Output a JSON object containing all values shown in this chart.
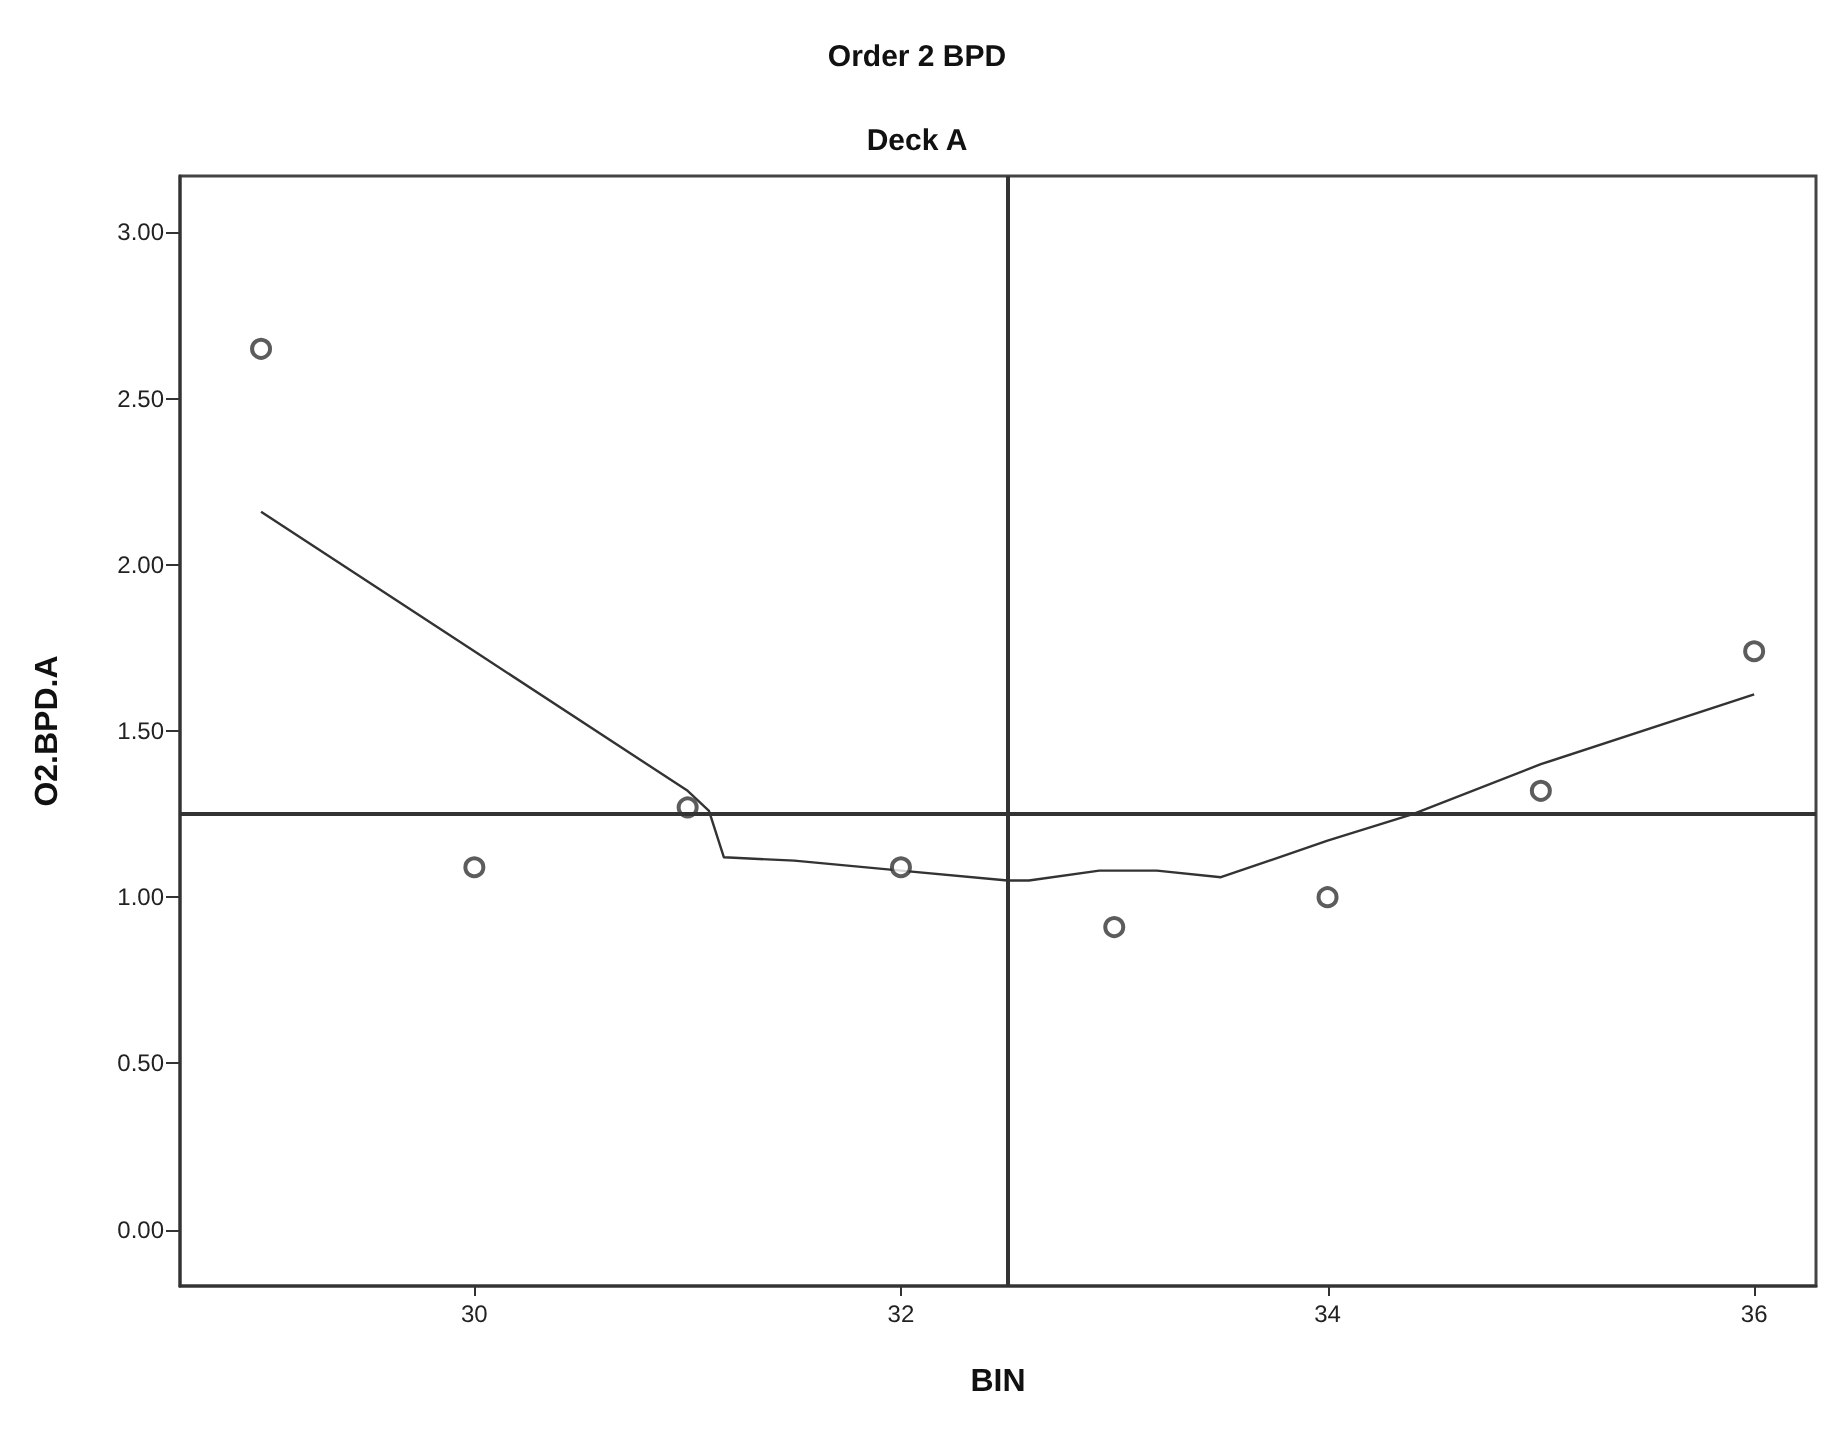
{
  "chart_data": {
    "type": "scatter",
    "title": "Order 2 BPD",
    "subtitle": "Deck A",
    "xlabel": "BIN",
    "ylabel": "O2.BPD.A",
    "xlim": [
      28.62,
      36.29
    ],
    "xticks": [
      30,
      32,
      34,
      36
    ],
    "ylim": [
      -0.17,
      3.17
    ],
    "yticks": [
      {
        "value": 0,
        "label": "0.00"
      },
      {
        "value": 0.5,
        "label": "0.50"
      },
      {
        "value": 1,
        "label": "1.00"
      },
      {
        "value": 1.5,
        "label": "1.50"
      },
      {
        "value": 2,
        "label": "2.00"
      },
      {
        "value": 2.5,
        "label": "2.50"
      },
      {
        "value": 3,
        "label": "3.00"
      }
    ],
    "grid": false,
    "marker": "circle",
    "series": [
      {
        "type": "scatter",
        "color": "#333333",
        "x": [
          29,
          30,
          31,
          32,
          33,
          34,
          35,
          36
        ],
        "values": [
          2.65,
          1.09,
          1.27,
          1.09,
          0.91,
          1.0,
          1.32,
          1.74
        ]
      },
      {
        "type": "line",
        "color": "#333333",
        "line_style": "solid",
        "marker": "none",
        "x": [
          29,
          30,
          31,
          31.1,
          31.17,
          31.5,
          32,
          32.5,
          32.6,
          32.93,
          33.2,
          33.5,
          34,
          34.4,
          35,
          36
        ],
        "values": [
          2.16,
          1.74,
          1.32,
          1.26,
          1.12,
          1.11,
          1.08,
          1.05,
          1.05,
          1.08,
          1.08,
          1.06,
          1.17,
          1.25,
          1.4,
          1.61
        ]
      }
    ],
    "ref_lines": [
      {
        "axis": "y",
        "value": 1.25,
        "color": "#333333"
      },
      {
        "axis": "x",
        "value": 32.5,
        "color": "#333333"
      }
    ]
  }
}
